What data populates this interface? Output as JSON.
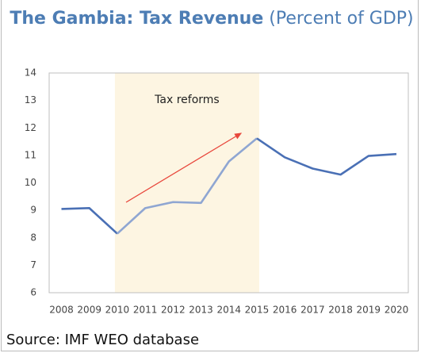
{
  "chart_data": {
    "type": "line",
    "title": "The Gambia: Tax Revenue",
    "subtitle": "(Percent of GDP)",
    "categories": [
      "2008",
      "2009",
      "2010",
      "2011",
      "2012",
      "2013",
      "2014",
      "2015",
      "2016",
      "2017",
      "2018",
      "2019",
      "2020"
    ],
    "values": [
      9.05,
      9.08,
      8.15,
      9.08,
      9.3,
      9.27,
      10.78,
      11.62,
      10.93,
      10.52,
      10.3,
      10.98,
      11.05
    ],
    "color": "#4a70b5",
    "highlight_color": "#8fa6d2",
    "ylim": [
      6,
      14
    ],
    "yticks": [
      6,
      7,
      8,
      9,
      10,
      11,
      12,
      13,
      14
    ],
    "annotation": {
      "text": "Tax reforms",
      "from": "2010",
      "to": "2015",
      "color": "#fdf5e2"
    }
  },
  "source": "Source: IMF WEO database"
}
